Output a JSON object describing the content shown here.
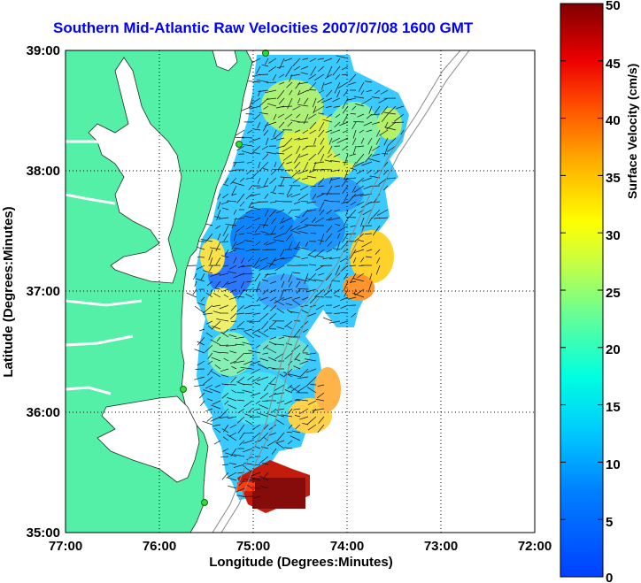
{
  "title": "Southern Mid-Atlantic Raw Velocities 2007/07/08 1600 GMT",
  "axes": {
    "xlabel": "Longitude (Degrees:Minutes)",
    "ylabel": "Latitude (Degrees:Minutes)",
    "x_ticks": [
      "77:00",
      "76:00",
      "75:00",
      "74:00",
      "73:00",
      "72:00"
    ],
    "y_ticks": [
      "39:00",
      "38:00",
      "37:00",
      "36:00",
      "35:00"
    ]
  },
  "colorbar": {
    "label": "Surface Velocity (cm/s)",
    "ticks": [
      "50",
      "45",
      "40",
      "35",
      "30",
      "25",
      "20",
      "15",
      "10",
      "5",
      "0"
    ],
    "range": [
      0,
      50
    ],
    "colormap": "jet"
  },
  "colors": {
    "land": "#55f0a8",
    "title": "#0000ff",
    "station": "#33dd33"
  },
  "map": {
    "lon_range": [
      -77,
      -72
    ],
    "lat_range": [
      35,
      39
    ],
    "grid": "dotted",
    "station_count": 4
  }
}
